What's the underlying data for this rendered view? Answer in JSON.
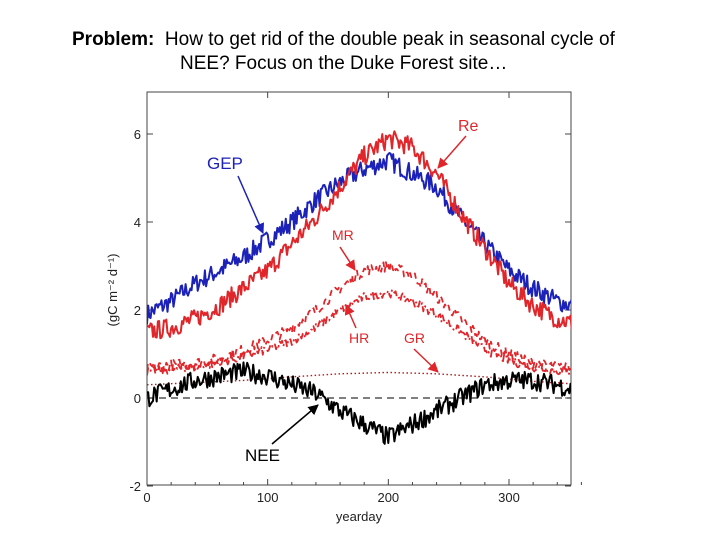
{
  "title": {
    "prefix": "Problem:",
    "line1_rest": "How to get rid of the double peak in seasonal cycle of",
    "line2": "NEE?   Focus on the Duke Forest site…"
  },
  "chart_data": {
    "type": "line",
    "xlabel": "yearday",
    "ylabel": "(gC m⁻² d⁻¹)",
    "xlim": [
      0,
      365
    ],
    "ylim": [
      -2,
      7
    ],
    "xticks": [
      "0",
      "100",
      "200",
      "300"
    ],
    "yticks": [
      "-2",
      "0",
      "2",
      "4",
      "6"
    ],
    "zero_line": "dashed",
    "colors": {
      "blue": "#1c22b8",
      "red": "#e0262b",
      "black": "#000000",
      "dark_red": "#b01a1a"
    },
    "series": [
      {
        "name": "GEP",
        "color": "#1c22b8",
        "style": "solid",
        "x": [
          0,
          20,
          40,
          60,
          80,
          100,
          120,
          140,
          160,
          180,
          200,
          220,
          240,
          260,
          280,
          300,
          320,
          340,
          365
        ],
        "y": [
          1.9,
          2.2,
          2.6,
          2.9,
          3.2,
          3.6,
          4.0,
          4.5,
          4.9,
          5.2,
          5.4,
          5.1,
          4.8,
          4.1,
          3.5,
          2.9,
          2.5,
          2.2,
          2.0
        ]
      },
      {
        "name": "Re",
        "color": "#e0262b",
        "style": "solid",
        "x": [
          0,
          20,
          40,
          60,
          80,
          100,
          120,
          140,
          160,
          180,
          200,
          220,
          240,
          260,
          280,
          300,
          320,
          340,
          365
        ],
        "y": [
          1.5,
          1.6,
          1.8,
          2.1,
          2.5,
          2.9,
          3.5,
          4.1,
          4.8,
          5.5,
          5.9,
          5.7,
          5.1,
          4.2,
          3.4,
          2.6,
          2.1,
          1.8,
          1.6
        ]
      },
      {
        "name": "MR",
        "color": "#e0262b",
        "style": "dashed",
        "x": [
          0,
          20,
          40,
          60,
          80,
          100,
          120,
          140,
          160,
          180,
          200,
          220,
          240,
          260,
          280,
          300,
          320,
          340,
          365
        ],
        "y": [
          0.7,
          0.75,
          0.8,
          0.9,
          1.1,
          1.3,
          1.6,
          2.0,
          2.5,
          2.9,
          3.0,
          2.8,
          2.3,
          1.8,
          1.3,
          1.0,
          0.8,
          0.7,
          0.65
        ]
      },
      {
        "name": "HR",
        "color": "#e0262b",
        "style": "dash-dot",
        "x": [
          0,
          20,
          40,
          60,
          80,
          100,
          120,
          140,
          160,
          180,
          200,
          220,
          240,
          260,
          280,
          300,
          320,
          340,
          365
        ],
        "y": [
          0.6,
          0.65,
          0.7,
          0.8,
          0.95,
          1.1,
          1.3,
          1.6,
          2.0,
          2.3,
          2.4,
          2.2,
          1.9,
          1.5,
          1.1,
          0.85,
          0.7,
          0.62,
          0.6
        ]
      },
      {
        "name": "GR",
        "color": "#b01a1a",
        "style": "dotted",
        "x": [
          0,
          40,
          80,
          120,
          160,
          200,
          240,
          280,
          320,
          365
        ],
        "y": [
          0.3,
          0.35,
          0.4,
          0.48,
          0.55,
          0.58,
          0.55,
          0.48,
          0.38,
          0.3
        ]
      },
      {
        "name": "NEE",
        "color": "#000000",
        "style": "solid",
        "x": [
          0,
          20,
          40,
          60,
          80,
          100,
          120,
          140,
          160,
          180,
          200,
          220,
          240,
          260,
          280,
          300,
          320,
          340,
          365
        ],
        "y": [
          0.0,
          0.2,
          0.4,
          0.5,
          0.6,
          0.5,
          0.3,
          0.1,
          -0.3,
          -0.6,
          -0.9,
          -0.6,
          -0.3,
          0.0,
          0.3,
          0.4,
          0.4,
          0.3,
          0.1
        ]
      }
    ],
    "annotations": [
      {
        "text": "Re",
        "color": "#e0262b",
        "target": "Re"
      },
      {
        "text": "GEP",
        "color": "#1c22b8",
        "target": "GEP"
      },
      {
        "text": "MR",
        "color": "#e0262b",
        "target": "MR"
      },
      {
        "text": "HR",
        "color": "#e0262b",
        "target": "HR"
      },
      {
        "text": "GR",
        "color": "#e0262b",
        "target": "GR"
      },
      {
        "text": "NEE",
        "color": "#000000",
        "target": "NEE"
      }
    ]
  }
}
